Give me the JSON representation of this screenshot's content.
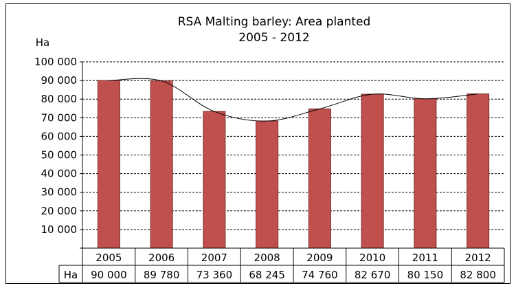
{
  "chart_data": {
    "type": "bar",
    "title": "RSA Malting barley: Area planted",
    "subtitle": "2005 - 2012",
    "ylabel": "Ha",
    "categories": [
      "2005",
      "2006",
      "2007",
      "2008",
      "2009",
      "2010",
      "2011",
      "2012"
    ],
    "series": [
      {
        "name": "Ha",
        "values": [
          90000,
          89780,
          73360,
          68245,
          74760,
          82670,
          80150,
          82800
        ],
        "value_labels": [
          "90 000",
          "89 780",
          "73 360",
          "68 245",
          "74 760",
          "82 670",
          "80 150",
          "82 800"
        ]
      }
    ],
    "ylim": [
      0,
      100000
    ],
    "yticks": [
      0,
      10000,
      20000,
      30000,
      40000,
      50000,
      60000,
      70000,
      80000,
      90000,
      100000
    ],
    "ytick_labels": [
      "",
      "10 000",
      "20 000",
      "30 000",
      "40 000",
      "50 000",
      "60 000",
      "70 000",
      "80 000",
      "90 000",
      "100 000"
    ],
    "grid": true,
    "trendline": "smoothed curve",
    "data_table": true,
    "colors": {
      "bar": "#c0504d",
      "bar_edge": "#7a2a28",
      "grid": "#000000",
      "trend": "#000000"
    }
  }
}
